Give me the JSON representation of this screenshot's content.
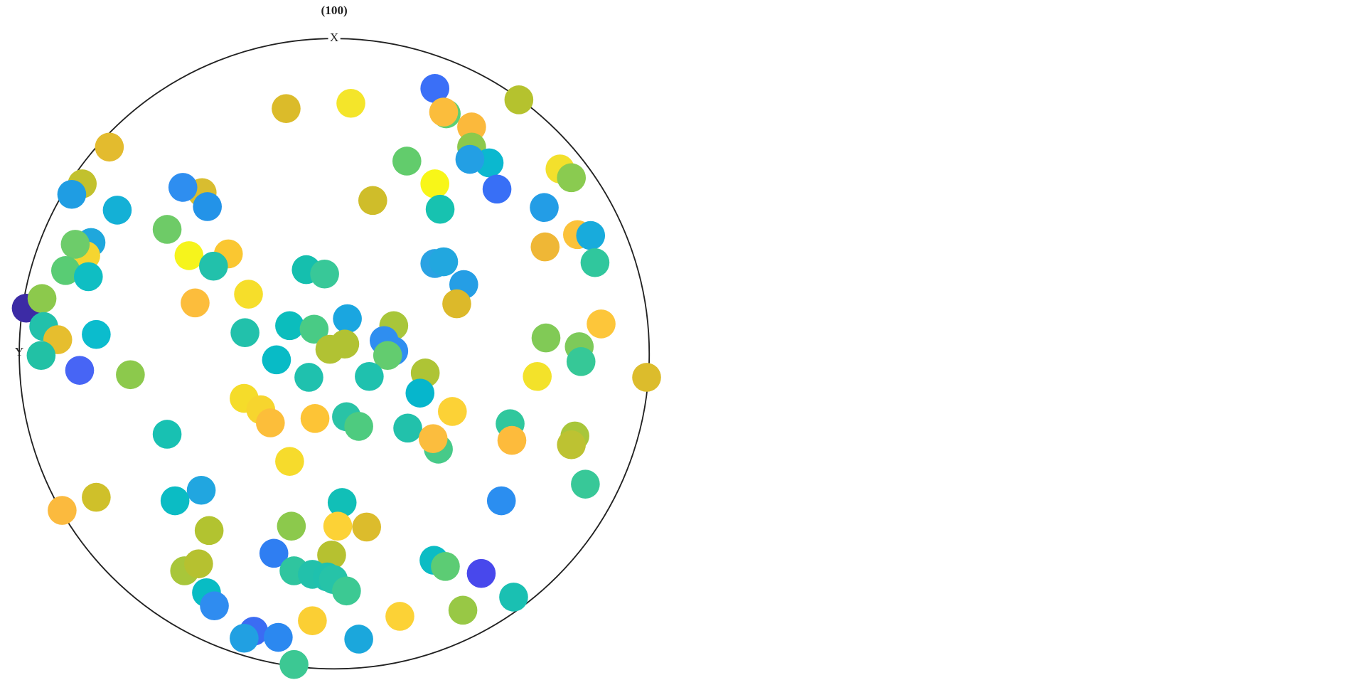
{
  "chart_data": {
    "type": "scatter",
    "title": "(100)",
    "x_label": "X",
    "y_label": "Y",
    "xlim": [
      -360,
      360
    ],
    "ylim": [
      -360,
      360
    ],
    "x": [
      115,
      211,
      -55,
      19,
      128,
      125,
      157,
      -257,
      157,
      177,
      155,
      83,
      258,
      271,
      -288,
      -300,
      -151,
      -173,
      -145,
      115,
      186,
      44,
      -248,
      121,
      240,
      -191,
      -278,
      -284,
      -296,
      278,
      293,
      -121,
      -166,
      -138,
      -307,
      -281,
      -32,
      -11,
      241,
      298,
      115,
      125,
      148,
      -98,
      -159,
      140,
      -352,
      -334,
      -332,
      -316,
      -335,
      -272,
      -291,
      -233,
      -102,
      -51,
      -23,
      15,
      68,
      57,
      68,
      12,
      -5,
      61,
      -66,
      -29,
      40,
      104,
      98,
      232,
      242,
      280,
      282,
      305,
      357,
      -103,
      -84,
      -73,
      -22,
      14,
      28,
      84,
      135,
      119,
      113,
      201,
      203,
      275,
      271,
      -191,
      -51,
      287,
      -311,
      -272,
      -152,
      -182,
      191,
      9,
      -143,
      -49,
      4,
      37,
      -3,
      -69,
      -171,
      -155,
      114,
      127,
      168,
      -46,
      -25,
      -8,
      -1,
      14,
      -146,
      -137,
      205,
      147,
      -25,
      75,
      -92,
      -103,
      -64,
      28,
      -46
    ],
    "values": [
      303,
      290,
      280,
      286,
      274,
      276,
      259,
      236,
      236,
      218,
      222,
      220,
      211,
      201,
      194,
      182,
      184,
      190,
      168,
      194,
      188,
      175,
      164,
      165,
      167,
      142,
      127,
      112,
      125,
      136,
      135,
      114,
      112,
      100,
      95,
      88,
      96,
      91,
      122,
      104,
      103,
      105,
      79,
      68,
      58,
      57,
      52,
      63,
      31,
      16,
      -2,
      22,
      -19,
      -24,
      24,
      32,
      28,
      40,
      32,
      15,
      3,
      11,
      5,
      -2,
      -7,
      -27,
      -26,
      -22,
      -45,
      -26,
      18,
      8,
      -9,
      34,
      -27,
      -51,
      -64,
      -79,
      -74,
      -72,
      -83,
      -85,
      -66,
      -109,
      -97,
      -80,
      -99,
      -94,
      -104,
      -92,
      -123,
      -149,
      -179,
      -164,
      -156,
      -168,
      -168,
      -170,
      -202,
      -197,
      -197,
      -198,
      -230,
      -228,
      -248,
      -240,
      -236,
      -243,
      -251,
      -248,
      -252,
      -255,
      -258,
      -271,
      -273,
      -288,
      -278,
      -293,
      -305,
      -300,
      -317,
      -325,
      -324,
      -326,
      -355
    ],
    "colors": [
      "#3a6ff7",
      "#b5c22e",
      "#dbbb2a",
      "#f4e52a",
      "#5ecf73",
      "#fbbd3c",
      "#fbb93c",
      "#e3bb2e",
      "#8cc94c",
      "#0bb8cf",
      "#239fe4",
      "#62cc6c",
      "#f3e02c",
      "#8acb50",
      "#c2c12d",
      "#1f9de3",
      "#d8bd30",
      "#2e8ef0",
      "#2393e8",
      "#f8f618",
      "#386ff6",
      "#cfbd2a",
      "#14b0d6",
      "#17c2b0",
      "#239de6",
      "#6ecb67",
      "#1fa7dc",
      "#f5d530",
      "#6dcc6a",
      "#fbc23a",
      "#18abdc",
      "#fac731",
      "#f6f41c",
      "#22c1ab",
      "#59cc74",
      "#0fbec3",
      "#15bfae",
      "#38c898",
      "#efb736",
      "#30c79d",
      "#2aa2e3",
      "#22a7df",
      "#259ee5",
      "#f6de2a",
      "#fcbd3c",
      "#dcb92a",
      "#3c2ba5",
      "#8cc94c",
      "#22c1ab",
      "#e6be2e",
      "#22c1a5",
      "#0bbccd",
      "#4765f5",
      "#8cc94c",
      "#22c1ab",
      "#0bbdbd",
      "#49cb85",
      "#1aa6e0",
      "#a8c63a",
      "#2f8ef0",
      "#2f8ef0",
      "#b1c233",
      "#b1c233",
      "#63cc6f",
      "#08bbc6",
      "#1fc1ae",
      "#1fc1ae",
      "#aec435",
      "#06b6cc",
      "#f3e22a",
      "#81ca56",
      "#7dca5a",
      "#36c897",
      "#fdc63a",
      "#dcbc2c",
      "#f5dc2a",
      "#f7d52e",
      "#fcbe3a",
      "#fdc436",
      "#29c3a6",
      "#4ecb7f",
      "#22c1ab",
      "#fcd236",
      "#47ca89",
      "#fbbd3e",
      "#30c79d",
      "#fdbb3c",
      "#a8c63a",
      "#bdc232",
      "#18c1b2",
      "#f6db2c",
      "#38c898",
      "#fbba3e",
      "#cfc02a",
      "#21a6e0",
      "#0bbcc4",
      "#2b8ef0",
      "#11bfb7",
      "#b2c330",
      "#8cc94c",
      "#fcd236",
      "#dcbc2c",
      "#b6c130",
      "#2f7ef2",
      "#a8c63a",
      "#b6c130",
      "#0bbcc4",
      "#5ccc74",
      "#4848ec",
      "#2fc59f",
      "#22c1ab",
      "#1fc1ae",
      "#26c3a8",
      "#3cc993",
      "#08bcc4",
      "#2f8cf0",
      "#1ac0b2",
      "#98c845",
      "#fbcf34",
      "#fcd236",
      "#3b6cf3",
      "#21a0e2",
      "#2b88f0",
      "#1ba7dc",
      "#3cc893"
    ]
  }
}
